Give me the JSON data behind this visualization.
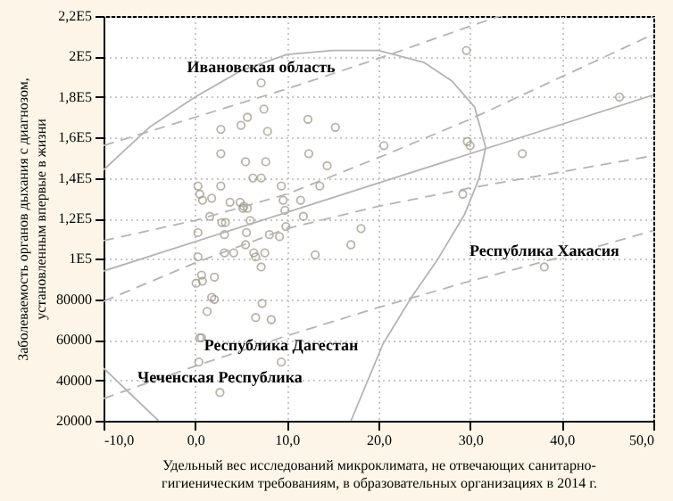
{
  "chart_data": {
    "type": "scatter",
    "xlabel": "Удельный вес исследований микроклимата, не отвечающих санитарно-\nгигиеническим требованиям, в образовательных организациях в 2014 г.",
    "ylabel": "Заболеваемость органов дыхания с диагнозом,\nустановленным впервые в жизни",
    "xlim": [
      -10,
      50
    ],
    "xticks": [
      {
        "value": -10,
        "label": "-10,0"
      },
      {
        "value": 0,
        "label": "0,0"
      },
      {
        "value": 10,
        "label": "10,0"
      },
      {
        "value": 20,
        "label": "20,0"
      },
      {
        "value": 30,
        "label": "30,0"
      },
      {
        "value": 40,
        "label": "40,0"
      },
      {
        "value": 50,
        "label": "50,0"
      }
    ],
    "ylim": [
      20000,
      220000
    ],
    "yticks": [
      20000,
      40000,
      60000,
      80000,
      {
        "value": 100000,
        "label": "1E5"
      },
      {
        "value": 120000,
        "label": "1,2E5"
      },
      {
        "value": 140000,
        "label": "1,4E5"
      },
      {
        "value": 160000,
        "label": "1,6E5"
      },
      {
        "value": 180000,
        "label": "1,8E5"
      },
      {
        "value": 200000,
        "label": "2E5"
      },
      {
        "value": 220000,
        "label": "2,2E5"
      }
    ],
    "grid": true,
    "series": [
      {
        "marker": "circle",
        "color": "#9a9484",
        "x": [
          7.2,
          7.5,
          5.7,
          5.0,
          2.8,
          7.9,
          12.3,
          15.3,
          2.8,
          5.5,
          7.7,
          12.4,
          14.4,
          6.3,
          7.2,
          0.3,
          2.8,
          9.4,
          13.6,
          0.5,
          0.8,
          1.8,
          3.8,
          4.9,
          5.3,
          5.7,
          5.2,
          9.6,
          11.5,
          9.8,
          1.6,
          2.9,
          3.3,
          6.0,
          9.9,
          11.8,
          18.1,
          0.3,
          3.2,
          5.6,
          8.1,
          9.2,
          17.0,
          5.5,
          6.4,
          0.3,
          3.2,
          4.2,
          6.6,
          7.6,
          7.2,
          13.1,
          0.7,
          0.1,
          0.8,
          2.1,
          1.8,
          2.1,
          1.3,
          7.3,
          6.6,
          8.3,
          0.5,
          0.7,
          0.4,
          9.4,
          2.7,
          29.6,
          46.3,
          35.7,
          29.7,
          30.0,
          29.2,
          20.6,
          38.1
        ],
        "values": [
          187000,
          174000,
          170000,
          166000,
          164000,
          163000,
          169000,
          165000,
          152000,
          148000,
          148000,
          152000,
          146000,
          140000,
          140000,
          136000,
          136000,
          136000,
          136000,
          132000,
          129000,
          130000,
          128000,
          128000,
          126000,
          125000,
          125000,
          129000,
          129000,
          124000,
          121000,
          118000,
          118000,
          119000,
          116000,
          121000,
          115000,
          113000,
          112000,
          113000,
          112000,
          111000,
          107000,
          107000,
          103000,
          101000,
          103000,
          103000,
          101000,
          103000,
          96000,
          102000,
          92000,
          88000,
          89000,
          91000,
          81000,
          80000,
          74000,
          78000,
          71000,
          70000,
          61000,
          61000,
          49000,
          49000,
          34000,
          203000,
          180000,
          152000,
          158000,
          156000,
          132000,
          156000,
          96000
        ]
      },
      {
        "type": "line",
        "line_style": "solid",
        "color": "#b4b4b4",
        "x": [
          -10,
          50
        ],
        "values": [
          94000,
          181000
        ]
      },
      {
        "type": "line",
        "line_style": "dashed",
        "color": "#b4b4b4",
        "x": [
          -10,
          0,
          10,
          20,
          30,
          40,
          50
        ],
        "values": [
          109000,
          119000,
          132000,
          150000,
          169000,
          190000,
          211000
        ]
      },
      {
        "type": "line",
        "line_style": "dashed",
        "color": "#b4b4b4",
        "x": [
          -10,
          0,
          10,
          20,
          30,
          40,
          50
        ],
        "values": [
          79000,
          98000,
          115000,
          126000,
          135000,
          143000,
          151000
        ]
      },
      {
        "type": "line",
        "line_style": "dashed",
        "color": "#b4b4b4",
        "x": [
          -10,
          0,
          10,
          20,
          30,
          33.3
        ],
        "values": [
          156000,
          170000,
          184000,
          199000,
          215000,
          220000
        ]
      },
      {
        "type": "line",
        "line_style": "dashed",
        "color": "#b4b4b4",
        "x": [
          -10,
          0,
          10,
          20,
          30,
          40,
          50
        ],
        "values": [
          31000,
          47000,
          62000,
          76000,
          89000,
          101000,
          114000
        ]
      },
      {
        "type": "line",
        "line_style": "solid",
        "color": "#b4b4b4",
        "x": [
          -10,
          -5,
          0,
          5,
          10,
          15,
          20,
          25,
          28,
          30.5,
          31.7,
          31,
          29.4,
          26.5,
          23.6,
          20.5,
          17,
          null,
          -10,
          -7,
          -4
        ],
        "values": [
          144000,
          165000,
          180000,
          193000,
          201000,
          203000,
          203000,
          197000,
          188000,
          175000,
          155000,
          140000,
          122000,
          100000,
          81000,
          58000,
          20000,
          null,
          46000,
          33000,
          20000
        ]
      }
    ],
    "annotations": [
      {
        "text": "Ивановская область",
        "x": 7.2,
        "y": 186800
      },
      {
        "text": "Республика Хакасия",
        "x": 38.1,
        "y": 96400
      },
      {
        "text": "Республика Дагестан",
        "x": 9.4,
        "y": 49300
      },
      {
        "text": "Чеченская Республика",
        "x": 2.7,
        "y": 33500
      }
    ]
  }
}
